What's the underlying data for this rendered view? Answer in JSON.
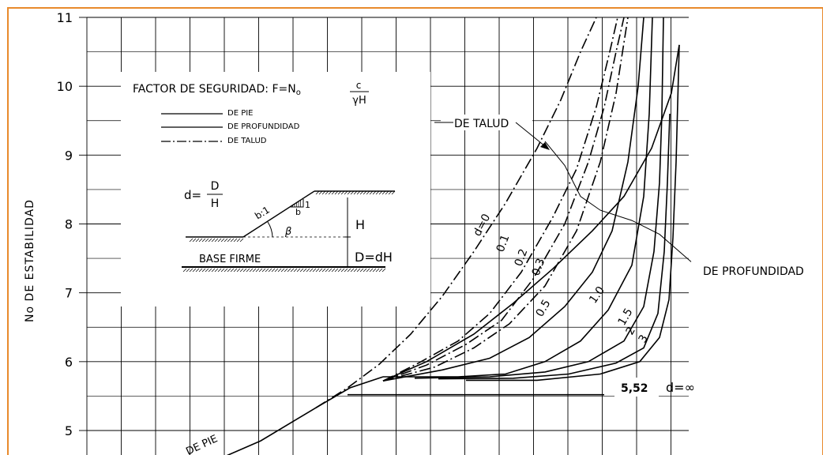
{
  "chart_data": {
    "type": "line",
    "ylabel": "No DE ESTABILIDAD",
    "ylim": [
      4.5,
      11
    ],
    "yticks": [
      5,
      6,
      7,
      8,
      9,
      10,
      11
    ],
    "grid": true,
    "legend": {
      "title_prefix": "FACTOR DE SEGURIDAD: F=N",
      "title_sub": "o",
      "frac_num": "c",
      "frac_den": "γH",
      "entries": [
        {
          "label": "DE PIE",
          "style": "solid"
        },
        {
          "label": "DE PROFUNDIDAD",
          "style": "solid"
        },
        {
          "label": "DE TALUD",
          "style": "dash-dot"
        }
      ]
    },
    "inset": {
      "d_lhs": "d=",
      "d_num": "D",
      "d_den": "H",
      "slope": "b:1",
      "b": "b",
      "one": "1",
      "beta": "β",
      "h": "H",
      "dh": "D=dH",
      "base": "BASE FIRME"
    },
    "annotations": {
      "de_talud": "DE TALUD",
      "de_profundidad": "DE PROFUNDIDAD",
      "de_pie": "DE PIE",
      "value_552": "5,52",
      "d_infinity": "d=∞"
    },
    "series": [
      {
        "label": "d=0",
        "style": "dash-dot",
        "points": [
          [
            400,
            5.33
          ],
          [
            440,
            5.62
          ],
          [
            480,
            5.96
          ],
          [
            520,
            6.4
          ],
          [
            560,
            6.95
          ],
          [
            600,
            7.6
          ],
          [
            640,
            8.3
          ],
          [
            680,
            9.1
          ],
          [
            710,
            9.8
          ],
          [
            735,
            10.5
          ],
          [
            755,
            11
          ]
        ]
      },
      {
        "label": "0.1",
        "style": "dash-dot",
        "points": [
          [
            485,
            5.72
          ],
          [
            530,
            5.98
          ],
          [
            580,
            6.3
          ],
          [
            620,
            6.7
          ],
          [
            660,
            7.3
          ],
          [
            700,
            8.1
          ],
          [
            730,
            8.8
          ],
          [
            755,
            9.7
          ],
          [
            772,
            10.5
          ],
          [
            782,
            11
          ]
        ]
      },
      {
        "label": "0.2",
        "style": "dash-dot",
        "points": [
          [
            485,
            5.72
          ],
          [
            540,
            5.95
          ],
          [
            590,
            6.25
          ],
          [
            635,
            6.6
          ],
          [
            675,
            7.2
          ],
          [
            715,
            8.0
          ],
          [
            745,
            8.9
          ],
          [
            765,
            9.7
          ],
          [
            780,
            10.5
          ],
          [
            790,
            11
          ]
        ]
      },
      {
        "label": "0.3",
        "style": "dash-dot",
        "points": [
          [
            485,
            5.72
          ],
          [
            550,
            5.92
          ],
          [
            600,
            6.2
          ],
          [
            645,
            6.55
          ],
          [
            690,
            7.1
          ],
          [
            730,
            7.9
          ],
          [
            760,
            8.9
          ],
          [
            780,
            9.9
          ],
          [
            795,
            11
          ]
        ]
      },
      {
        "label": "0.5",
        "style": "solid",
        "points": [
          [
            485,
            5.72
          ],
          [
            560,
            5.88
          ],
          [
            620,
            6.05
          ],
          [
            670,
            6.35
          ],
          [
            715,
            6.8
          ],
          [
            750,
            7.3
          ],
          [
            775,
            7.9
          ],
          [
            795,
            8.9
          ],
          [
            808,
            10.0
          ],
          [
            815,
            11
          ]
        ]
      },
      {
        "label": "1.0",
        "style": "solid",
        "points": [
          [
            485,
            5.78
          ],
          [
            580,
            5.78
          ],
          [
            640,
            5.82
          ],
          [
            690,
            6.0
          ],
          [
            735,
            6.3
          ],
          [
            770,
            6.75
          ],
          [
            800,
            7.4
          ],
          [
            815,
            8.4
          ],
          [
            822,
            9.6
          ],
          [
            826,
            11
          ]
        ]
      },
      {
        "label": "1.5",
        "style": "solid",
        "points": [
          [
            525,
            5.76
          ],
          [
            620,
            5.78
          ],
          [
            690,
            5.85
          ],
          [
            745,
            6.0
          ],
          [
            790,
            6.3
          ],
          [
            815,
            6.8
          ],
          [
            828,
            7.6
          ],
          [
            835,
            8.6
          ],
          [
            838,
            9.6
          ],
          [
            840,
            11
          ]
        ]
      },
      {
        "label": "2",
        "style": "solid",
        "points": [
          [
            555,
            5.75
          ],
          [
            650,
            5.76
          ],
          [
            720,
            5.82
          ],
          [
            780,
            5.98
          ],
          [
            815,
            6.2
          ],
          [
            833,
            6.7
          ],
          [
            841,
            7.6
          ],
          [
            845,
            8.6
          ],
          [
            848,
            9.6
          ]
        ]
      },
      {
        "label": "3",
        "style": "solid",
        "points": [
          [
            590,
            5.73
          ],
          [
            680,
            5.73
          ],
          [
            760,
            5.82
          ],
          [
            810,
            6.0
          ],
          [
            835,
            6.35
          ],
          [
            847,
            6.9
          ],
          [
            852,
            7.8
          ],
          [
            856,
            8.9
          ],
          [
            860,
            10.6
          ]
        ]
      },
      {
        "label": "d=∞",
        "style": "solid",
        "points": [
          [
            440,
            5.52
          ],
          [
            765,
            5.52
          ]
        ]
      },
      {
        "label": "DE PIE",
        "style": "solid",
        "points": [
          [
            270,
            4.55
          ],
          [
            330,
            4.85
          ],
          [
            400,
            5.33
          ],
          [
            443,
            5.62
          ],
          [
            485,
            5.78
          ]
        ]
      },
      {
        "label": "DE PROFUNDIDAD",
        "style": "solid",
        "points": [
          [
            485,
            5.72
          ],
          [
            540,
            6.0
          ],
          [
            600,
            6.4
          ],
          [
            650,
            6.85
          ],
          [
            700,
            7.35
          ],
          [
            750,
            7.9
          ],
          [
            790,
            8.4
          ],
          [
            825,
            9.1
          ],
          [
            850,
            9.9
          ],
          [
            860,
            10.6
          ]
        ]
      },
      {
        "label": "DE TALUD",
        "style": "solid",
        "points": [
          [
            690,
            9.2
          ],
          [
            715,
            8.85
          ],
          [
            735,
            8.4
          ],
          [
            760,
            8.2
          ],
          [
            800,
            8.05
          ],
          [
            835,
            7.85
          ],
          [
            875,
            7.45
          ]
        ]
      }
    ]
  }
}
